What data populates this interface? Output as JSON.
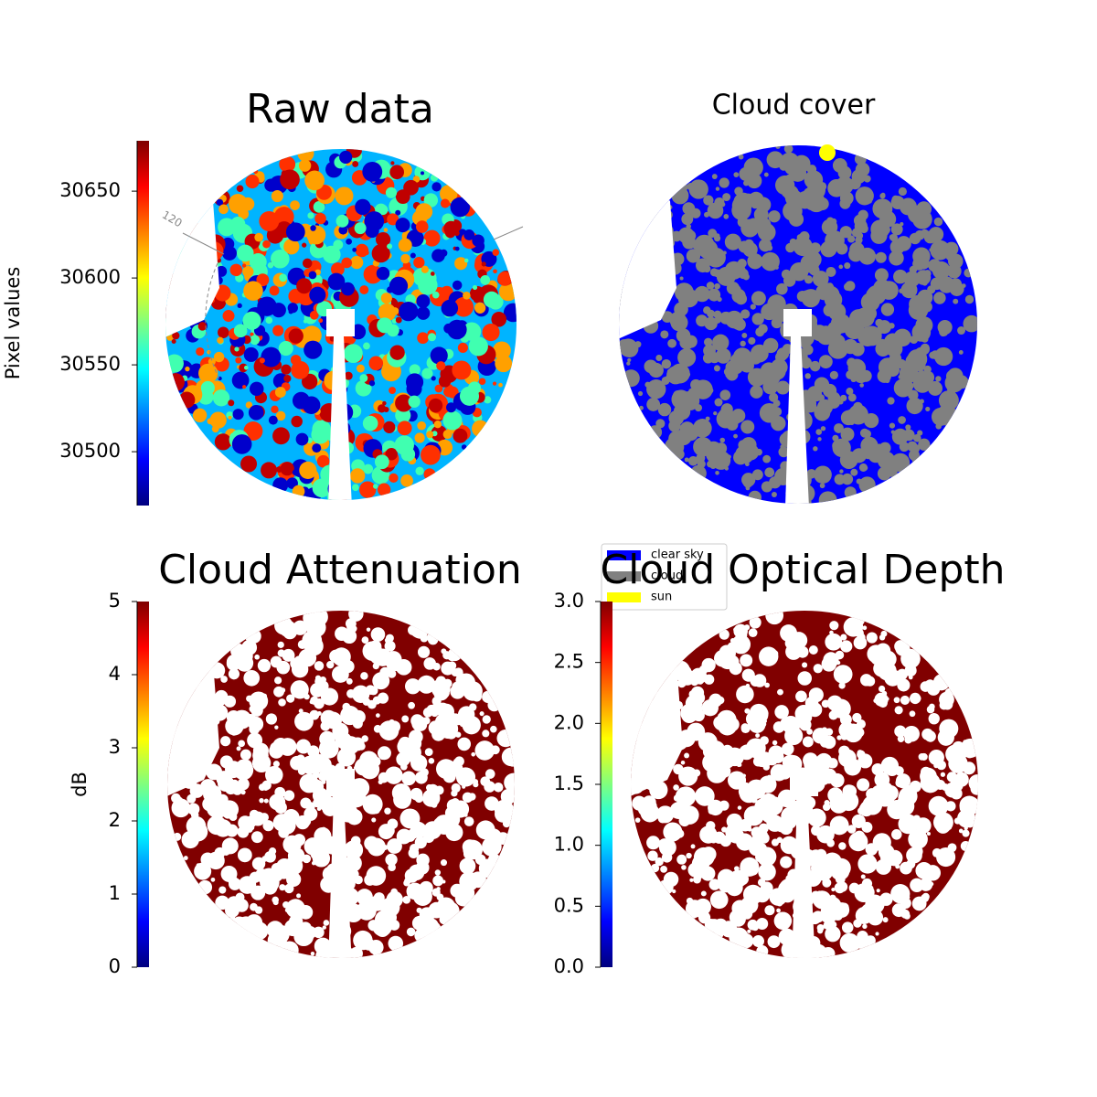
{
  "chart_data": [
    {
      "type": "image",
      "title": "Raw data",
      "colormap": "jet",
      "colorbar_label": "Pixel values",
      "clim": [
        30469,
        30679
      ],
      "cticks": [
        30500,
        30550,
        30600,
        30650
      ],
      "annotation": "120"
    },
    {
      "type": "image",
      "title": "Cloud cover",
      "legend": [
        {
          "name": "clear sky",
          "color": "#0000ff"
        },
        {
          "name": "cloud",
          "color": "#808080"
        },
        {
          "name": "sun",
          "color": "#ffff00"
        }
      ]
    },
    {
      "type": "image",
      "title": "Cloud Attenuation",
      "colormap": "jet",
      "colorbar_label": "dB",
      "clim": [
        0,
        5
      ],
      "cticks": [
        0,
        1,
        2,
        3,
        4,
        5
      ]
    },
    {
      "type": "image",
      "title": "Cloud Optical Depth",
      "colormap": "jet",
      "clim": [
        0,
        3
      ],
      "cticks": [
        {
          "value": 0,
          "label": "0.0"
        },
        0.5,
        {
          "value": 1,
          "label": "1.0"
        },
        1.5,
        {
          "value": 2,
          "label": "2.0"
        },
        2.5,
        {
          "value": 3,
          "label": "3.0"
        }
      ]
    }
  ]
}
